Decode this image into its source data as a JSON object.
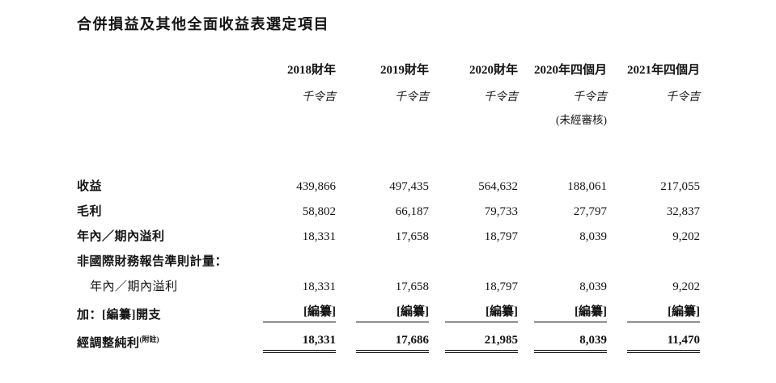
{
  "page": {
    "title": "合併損益及其他全面收益表選定項目"
  },
  "header": {
    "years": [
      "2018財年",
      "2019財年",
      "2020財年",
      "2020年四個月",
      "2021年四個月"
    ],
    "unit": "千令吉",
    "unaudited_note": "(未經審核)"
  },
  "rows": [
    {
      "label": "收益",
      "values": [
        "439,866",
        "497,435",
        "564,632",
        "188,061",
        "217,055"
      ]
    },
    {
      "label": "毛利",
      "values": [
        "58,802",
        "66,187",
        "79,733",
        "27,797",
        "32,837"
      ]
    },
    {
      "label": "年內／期內溢利",
      "values": [
        "18,331",
        "17,658",
        "18,797",
        "8,039",
        "9,202"
      ]
    },
    {
      "label": "非國際財務報告準則計量：",
      "values": [
        "",
        "",
        "",
        "",
        ""
      ]
    },
    {
      "label": "年內／期內溢利",
      "values": [
        "18,331",
        "17,658",
        "18,797",
        "8,039",
        "9,202"
      ]
    },
    {
      "label": "加：[編纂]開支",
      "values": [
        "[編纂]",
        "[編纂]",
        "[編纂]",
        "[編纂]",
        "[編纂]"
      ]
    },
    {
      "label": "經調整純利",
      "label_note": "(附註)",
      "values": [
        "18,331",
        "17,686",
        "21,985",
        "8,039",
        "11,470"
      ]
    }
  ]
}
